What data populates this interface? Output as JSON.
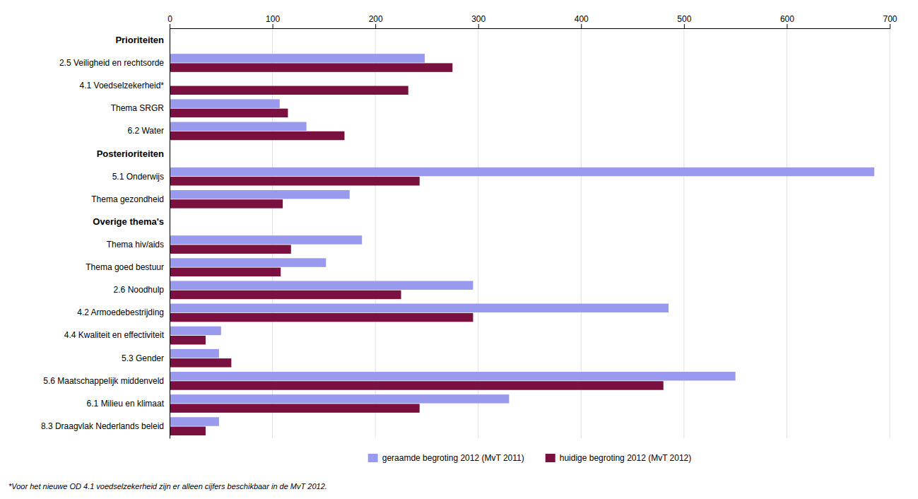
{
  "chart_data": {
    "type": "bar",
    "orientation": "horizontal",
    "categories": [
      "2.5 Veiligheid en rechtsorde",
      "4.1 Voedselzekerheid*",
      "Thema SRGR",
      "6.2 Water",
      "5.1 Onderwijs",
      "Thema gezondheid",
      "Thema hiv/aids",
      "Thema goed bestuur",
      "2.6 Noodhulp",
      "4.2 Armoedebestrijding",
      "4.4 Kwaliteit en effectiviteit",
      "5.3 Gender",
      "5.6 Maatschappelijk middenveld",
      "6.1 Milieu en klimaat",
      "8.3 Draagvlak Nederlands beleid"
    ],
    "series": [
      {
        "name": "geraamde begroting 2012 (MvT 2011)",
        "color": "#9999ee",
        "values": [
          248,
          0,
          107,
          133,
          685,
          175,
          187,
          152,
          295,
          485,
          50,
          48,
          550,
          330,
          48
        ]
      },
      {
        "name": "huidige begroting 2012 (MvT 2012)",
        "color": "#7a1040",
        "values": [
          275,
          232,
          115,
          170,
          243,
          110,
          118,
          108,
          225,
          295,
          35,
          60,
          480,
          243,
          35
        ]
      }
    ],
    "xlim": [
      0,
      700
    ],
    "xticks": [
      0,
      100,
      200,
      300,
      400,
      500,
      600,
      700
    ],
    "grid": true,
    "legend": "bottom",
    "annotations": [
      {
        "text": "Prioriteiten",
        "before": "2.5 Veiligheid en rechtsorde"
      },
      {
        "text": "Posterioriteiten",
        "before": "5.1 Onderwijs"
      },
      {
        "text": "Overige thema's",
        "before": "Thema hiv/aids"
      }
    ],
    "footnote": "*Voor het nieuwe OD 4.1 voedselzekerheid zijn er alleen cijfers beschikbaar in de MvT 2012."
  }
}
